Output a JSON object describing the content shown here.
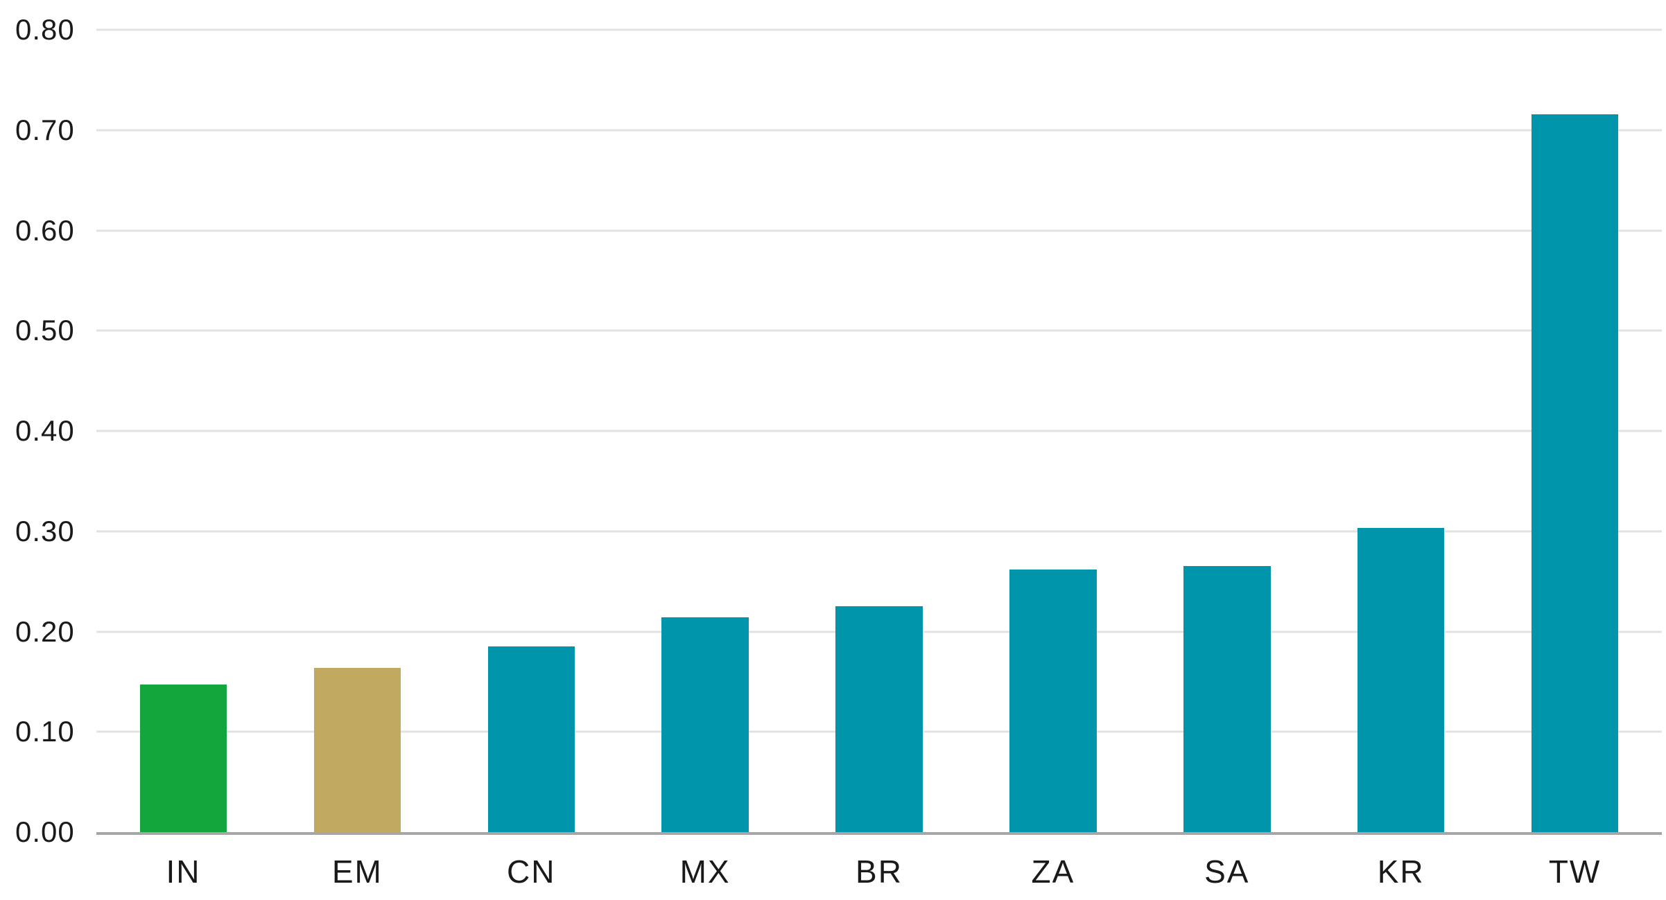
{
  "page": {
    "background_color": "#FFFFFF"
  },
  "chart_data": {
    "type": "bar",
    "title": "",
    "xlabel": "",
    "ylabel": "",
    "categories": [
      "IN",
      "EM",
      "CN",
      "MX",
      "BR",
      "ZA",
      "SA",
      "KR",
      "TW"
    ],
    "values": [
      0.147,
      0.164,
      0.185,
      0.214,
      0.225,
      0.262,
      0.265,
      0.303,
      0.716
    ],
    "bar_colors": [
      "#12A63C",
      "#C1AA5F",
      "#0095AB",
      "#0095AB",
      "#0095AB",
      "#0095AB",
      "#0095AB",
      "#0095AB",
      "#0095AB"
    ],
    "ylim": [
      0,
      0.8
    ],
    "yticks": [
      0.0,
      0.1,
      0.2,
      0.3,
      0.4,
      0.5,
      0.6,
      0.7,
      0.8
    ],
    "ytick_labels": [
      "0.00",
      "0.10",
      "0.20",
      "0.30",
      "0.40",
      "0.50",
      "0.60",
      "0.70",
      "0.80"
    ],
    "grid": "horizontal",
    "legend": "none",
    "colors": {
      "teal_default": "#0095AB",
      "green_highlight": "#12A63C",
      "tan_highlight": "#C1AA5F",
      "gridline": "#E2E2E2",
      "axis_line": "#A6A6A6",
      "tick_text": "#1A1A1A",
      "background": "#FFFFFF"
    }
  }
}
